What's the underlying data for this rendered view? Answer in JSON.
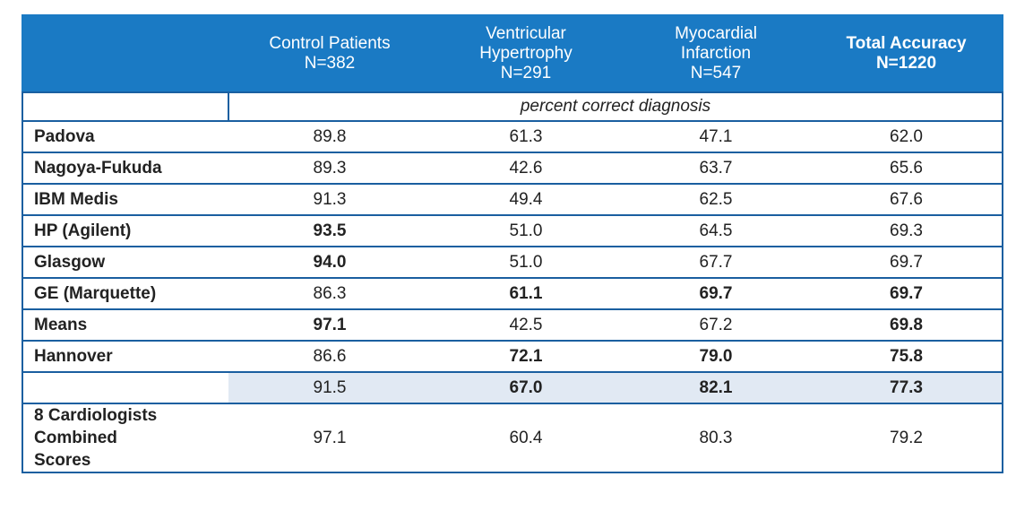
{
  "table": {
    "columns": [
      {
        "line1": "Control Patients",
        "line2": "N=382",
        "line3": "",
        "bold": false
      },
      {
        "line1": "Ventricular",
        "line2": "Hypertrophy",
        "line3": "N=291",
        "bold": false
      },
      {
        "line1": "Myocardial",
        "line2": "Infarction",
        "line3": "N=547",
        "bold": false
      },
      {
        "line1": "Total Accuracy",
        "line2": "N=1220",
        "line3": "",
        "bold": true
      }
    ],
    "subheader": "percent correct diagnosis",
    "rows": [
      {
        "name": "Padova",
        "values": [
          "89.8",
          "61.3",
          "47.1",
          "62.0"
        ],
        "colors": [
          "plain",
          "plain",
          "plain",
          "plain"
        ]
      },
      {
        "name": "Nagoya-Fukuda",
        "values": [
          "89.3",
          "42.6",
          "63.7",
          "65.6"
        ],
        "colors": [
          "plain",
          "plain",
          "plain",
          "plain"
        ]
      },
      {
        "name": "IBM Medis",
        "values": [
          "91.3",
          "49.4",
          "62.5",
          "67.6"
        ],
        "colors": [
          "plain",
          "plain",
          "plain",
          "plain"
        ]
      },
      {
        "name": "HP (Agilent)",
        "values": [
          "93.5",
          "51.0",
          "64.5",
          "69.3"
        ],
        "colors": [
          "blue",
          "plain",
          "plain",
          "plain"
        ]
      },
      {
        "name": "Glasgow",
        "values": [
          "94.0",
          "51.0",
          "67.7",
          "69.7"
        ],
        "colors": [
          "green",
          "plain",
          "plain",
          "plain"
        ]
      },
      {
        "name": "GE (Marquette)",
        "values": [
          "86.3",
          "61.1",
          "69.7",
          "69.7"
        ],
        "colors": [
          "plain",
          "blue",
          "blue",
          "blue"
        ]
      },
      {
        "name": "Means",
        "values": [
          "97.1",
          "42.5",
          "67.2",
          "69.8"
        ],
        "colors": [
          "red",
          "plain",
          "plain",
          "blue"
        ]
      },
      {
        "name": "Hannover",
        "values": [
          "86.6",
          "72.1",
          "79.0",
          "75.8"
        ],
        "colors": [
          "plain",
          "red",
          "green",
          "green"
        ]
      }
    ],
    "highlight_row": {
      "name": "",
      "values": [
        "91.5",
        "67.0",
        "82.1",
        "77.3"
      ],
      "colors": [
        "plain",
        "green",
        "red",
        "red"
      ]
    },
    "final_row": {
      "name_lines": [
        "8 Cardiologists",
        "Combined",
        "Scores"
      ],
      "values": [
        "97.1",
        "60.4",
        "80.3",
        "79.2"
      ]
    }
  },
  "colors": {
    "header_bg": "#1a7ac4",
    "border": "#1a5fa0",
    "highlight_bg": "#e1e9f3",
    "blue": "#2d7fa8",
    "green": "#6f8a2a",
    "red": "#a3232b"
  }
}
